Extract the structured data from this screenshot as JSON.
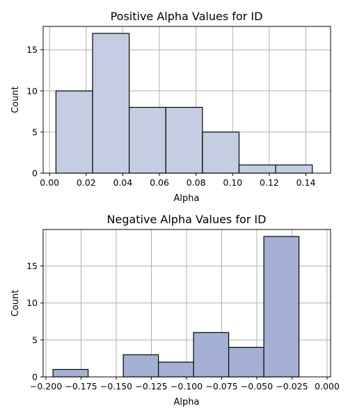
{
  "chart_data": [
    {
      "type": "bar",
      "title": "Positive Alpha Values for ID",
      "xlabel": "Alpha",
      "ylabel": "Count",
      "bar_color": "#c4cde2",
      "xlim": [
        -0.0035,
        0.1535
      ],
      "ylim": [
        0,
        17.85
      ],
      "xticks": [
        0.0,
        0.02,
        0.04,
        0.06,
        0.08,
        0.1,
        0.12,
        0.14
      ],
      "xtick_labels": [
        "0.00",
        "0.02",
        "0.04",
        "0.06",
        "0.08",
        "0.10",
        "0.12",
        "0.14"
      ],
      "yticks": [
        0,
        5,
        10,
        15
      ],
      "ytick_labels": [
        "0",
        "5",
        "10",
        "15"
      ],
      "grid": true,
      "bins": [
        {
          "x0": 0.0035,
          "x1": 0.0235,
          "count": 10
        },
        {
          "x0": 0.0235,
          "x1": 0.0435,
          "count": 17
        },
        {
          "x0": 0.0435,
          "x1": 0.0635,
          "count": 8
        },
        {
          "x0": 0.0635,
          "x1": 0.0835,
          "count": 8
        },
        {
          "x0": 0.0835,
          "x1": 0.1035,
          "count": 5
        },
        {
          "x0": 0.1035,
          "x1": 0.1235,
          "count": 1
        },
        {
          "x0": 0.1235,
          "x1": 0.1435,
          "count": 1
        }
      ]
    },
    {
      "type": "bar",
      "title": "Negative Alpha Values for ID",
      "xlabel": "Alpha",
      "ylabel": "Count",
      "bar_color": "#a3b0d3",
      "xlim": [
        -0.202,
        0.0025
      ],
      "ylim": [
        0,
        19.95
      ],
      "xticks": [
        -0.2,
        -0.175,
        -0.15,
        -0.125,
        -0.1,
        -0.075,
        -0.05,
        -0.025,
        0.0
      ],
      "xtick_labels": [
        "−0.200",
        "−0.175",
        "−0.150",
        "−0.125",
        "−0.100",
        "−0.075",
        "−0.050",
        "−0.025",
        "0.000"
      ],
      "yticks": [
        0,
        5,
        10,
        15
      ],
      "ytick_labels": [
        "0",
        "5",
        "10",
        "15"
      ],
      "grid": true,
      "bins": [
        {
          "x0": -0.195,
          "x1": -0.17,
          "count": 1
        },
        {
          "x0": -0.17,
          "x1": -0.145,
          "count": 0
        },
        {
          "x0": -0.145,
          "x1": -0.12,
          "count": 3
        },
        {
          "x0": -0.12,
          "x1": -0.095,
          "count": 2
        },
        {
          "x0": -0.095,
          "x1": -0.07,
          "count": 6
        },
        {
          "x0": -0.07,
          "x1": -0.045,
          "count": 4
        },
        {
          "x0": -0.045,
          "x1": -0.02,
          "count": 19
        }
      ]
    }
  ]
}
